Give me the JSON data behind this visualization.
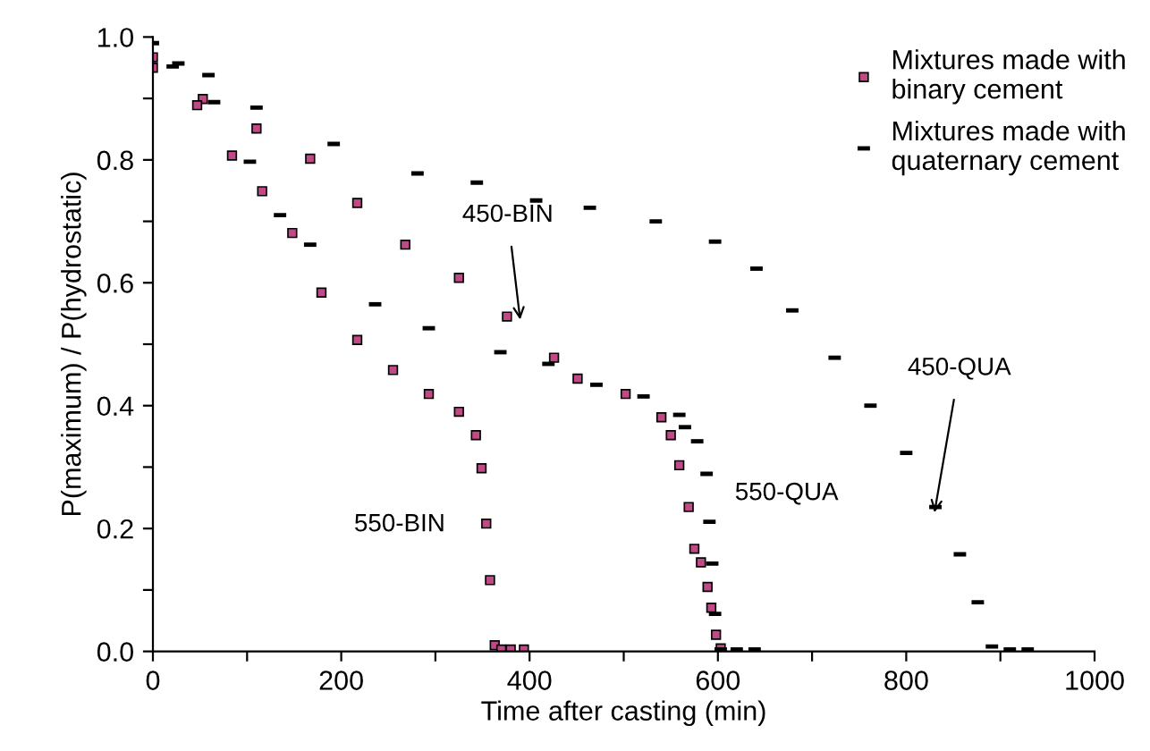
{
  "chart_data": {
    "type": "scatter",
    "xlabel": "Time after casting (min)",
    "ylabel": "P(maximum) / P(hydrostatic)",
    "xlim": [
      0,
      1000
    ],
    "ylim": [
      0,
      1.0
    ],
    "xticks": [
      0,
      {
        "value": 100,
        "label": null
      },
      200,
      {
        "value": 300,
        "label": null
      },
      400,
      {
        "value": 500,
        "label": null
      },
      600,
      {
        "value": 700,
        "label": null
      },
      800,
      {
        "value": 900,
        "label": null
      },
      1000
    ],
    "yticks": [
      {
        "value": 0,
        "label": "0.0"
      },
      {
        "value": 0.1,
        "label": null
      },
      {
        "value": 0.2,
        "label": "0.2"
      },
      {
        "value": 0.3,
        "label": null
      },
      {
        "value": 0.4,
        "label": "0.4"
      },
      {
        "value": 0.5,
        "label": null
      },
      {
        "value": 0.6,
        "label": "0.6"
      },
      {
        "value": 0.7,
        "label": null
      },
      {
        "value": 0.8,
        "label": "0.8"
      },
      {
        "value": 0.9,
        "label": null
      },
      {
        "value": 1.0,
        "label": "1.0"
      }
    ],
    "grid": false,
    "legend": "top right",
    "series": [
      {
        "name": "Mixtures made with binary cement",
        "color": "#c04a86",
        "marker": "square",
        "x": [
          0,
          53,
          110,
          167,
          217,
          268,
          325,
          376,
          426,
          451,
          502,
          540,
          550,
          559,
          569,
          575,
          582,
          589,
          593,
          598,
          603
        ],
        "values": [
          0.967,
          0.899,
          0.851,
          0.802,
          0.73,
          0.662,
          0.608,
          0.545,
          0.478,
          0.444,
          0.419,
          0.381,
          0.352,
          0.303,
          0.235,
          0.167,
          0.145,
          0.105,
          0.071,
          0.027,
          0.005
        ]
      },
      {
        "color": "#c04a86",
        "marker": "square",
        "x": [
          0,
          47,
          84,
          116,
          148,
          179,
          217,
          255,
          293,
          325,
          343,
          349,
          354,
          358,
          363,
          370,
          380,
          394
        ],
        "values": [
          0.95,
          0.889,
          0.807,
          0.749,
          0.681,
          0.584,
          0.507,
          0.458,
          0.419,
          0.39,
          0.352,
          0.298,
          0.208,
          0.116,
          0.01,
          0.003,
          0.003,
          0.003
        ]
      },
      {
        "name": "Mixtures made with quaternary cement",
        "color": "#000000",
        "x": [
          27,
          59,
          110,
          192,
          281,
          344,
          407,
          464,
          534,
          597,
          641,
          679,
          724,
          762,
          800,
          831,
          857,
          876,
          891,
          910,
          929
        ],
        "values": [
          0.957,
          0.938,
          0.885,
          0.826,
          0.778,
          0.763,
          0.734,
          0.722,
          0.7,
          0.667,
          0.623,
          0.555,
          0.478,
          0.4,
          0.323,
          0.235,
          0.158,
          0.08,
          0.008,
          0.003,
          0.003
        ]
      },
      {
        "color": "#000000",
        "x": [
          0,
          21,
          65,
          103,
          135,
          167,
          236,
          293,
          369,
          420,
          471,
          521,
          559,
          565,
          578,
          588,
          591,
          594,
          597,
          603,
          620,
          639
        ],
        "values": [
          0.99,
          0.952,
          0.894,
          0.797,
          0.71,
          0.662,
          0.565,
          0.526,
          0.487,
          0.468,
          0.434,
          0.415,
          0.385,
          0.365,
          0.342,
          0.289,
          0.211,
          0.143,
          0.061,
          0.003,
          0.003,
          0.003
        ]
      }
    ],
    "annotations": [
      {
        "text": "450-BIN",
        "x": 390,
        "y": 0.54
      },
      "550-BIN",
      "550-QUA",
      {
        "text": "450-QUA",
        "x": 830,
        "y": 0.226
      }
    ]
  }
}
